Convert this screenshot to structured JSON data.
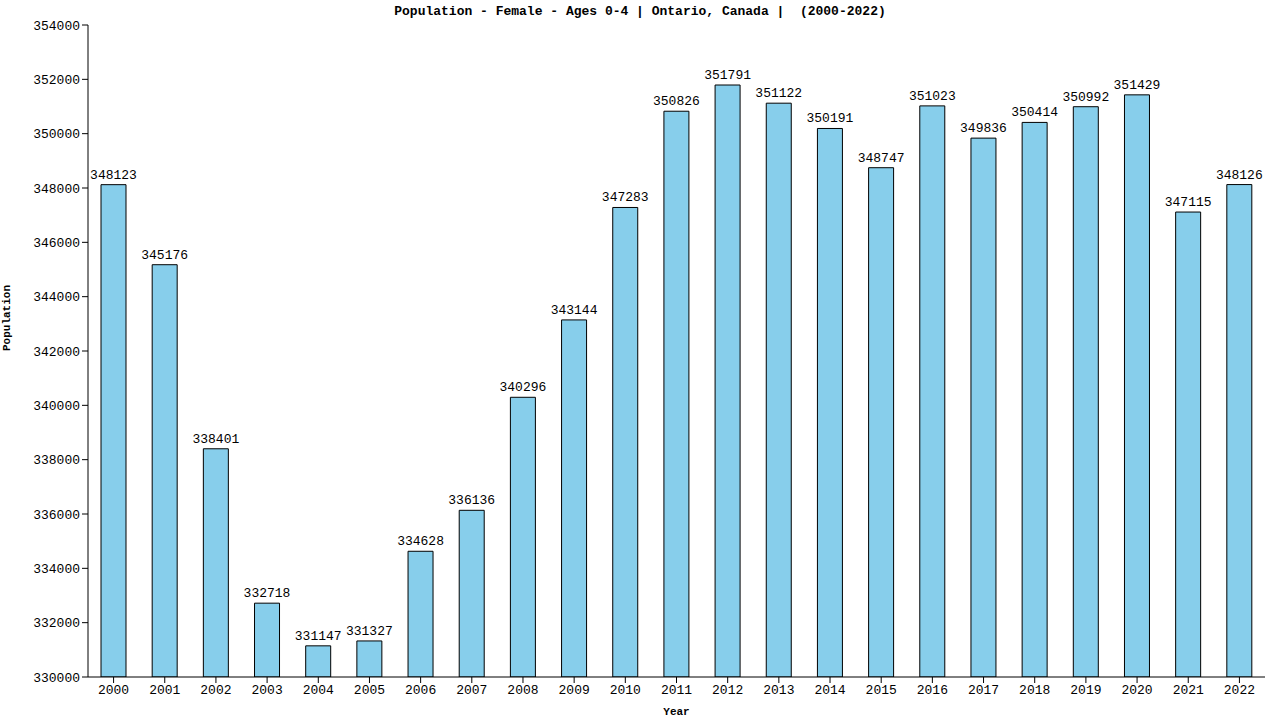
{
  "chart_data": {
    "type": "bar",
    "title": "Population - Female - Ages 0-4 | Ontario, Canada |  (2000-2022)",
    "x_label": "Year",
    "y_label": "Population",
    "categories": [
      "2000",
      "2001",
      "2002",
      "2003",
      "2004",
      "2005",
      "2006",
      "2007",
      "2008",
      "2009",
      "2010",
      "2011",
      "2012",
      "2013",
      "2014",
      "2015",
      "2016",
      "2017",
      "2018",
      "2019",
      "2020",
      "2021",
      "2022"
    ],
    "values": [
      348123,
      345176,
      338401,
      332718,
      331147,
      331327,
      334628,
      336136,
      340296,
      343144,
      347283,
      350826,
      351791,
      351122,
      350191,
      348747,
      351023,
      349836,
      350414,
      350992,
      351429,
      347115,
      348126
    ],
    "color": "#87ceeb",
    "ylim": [
      330000,
      354000
    ],
    "yticks": [
      330000,
      332000,
      334000,
      336000,
      338000,
      340000,
      342000,
      344000,
      346000,
      348000,
      350000,
      352000,
      354000
    ],
    "data_labels": true,
    "grid": false
  }
}
